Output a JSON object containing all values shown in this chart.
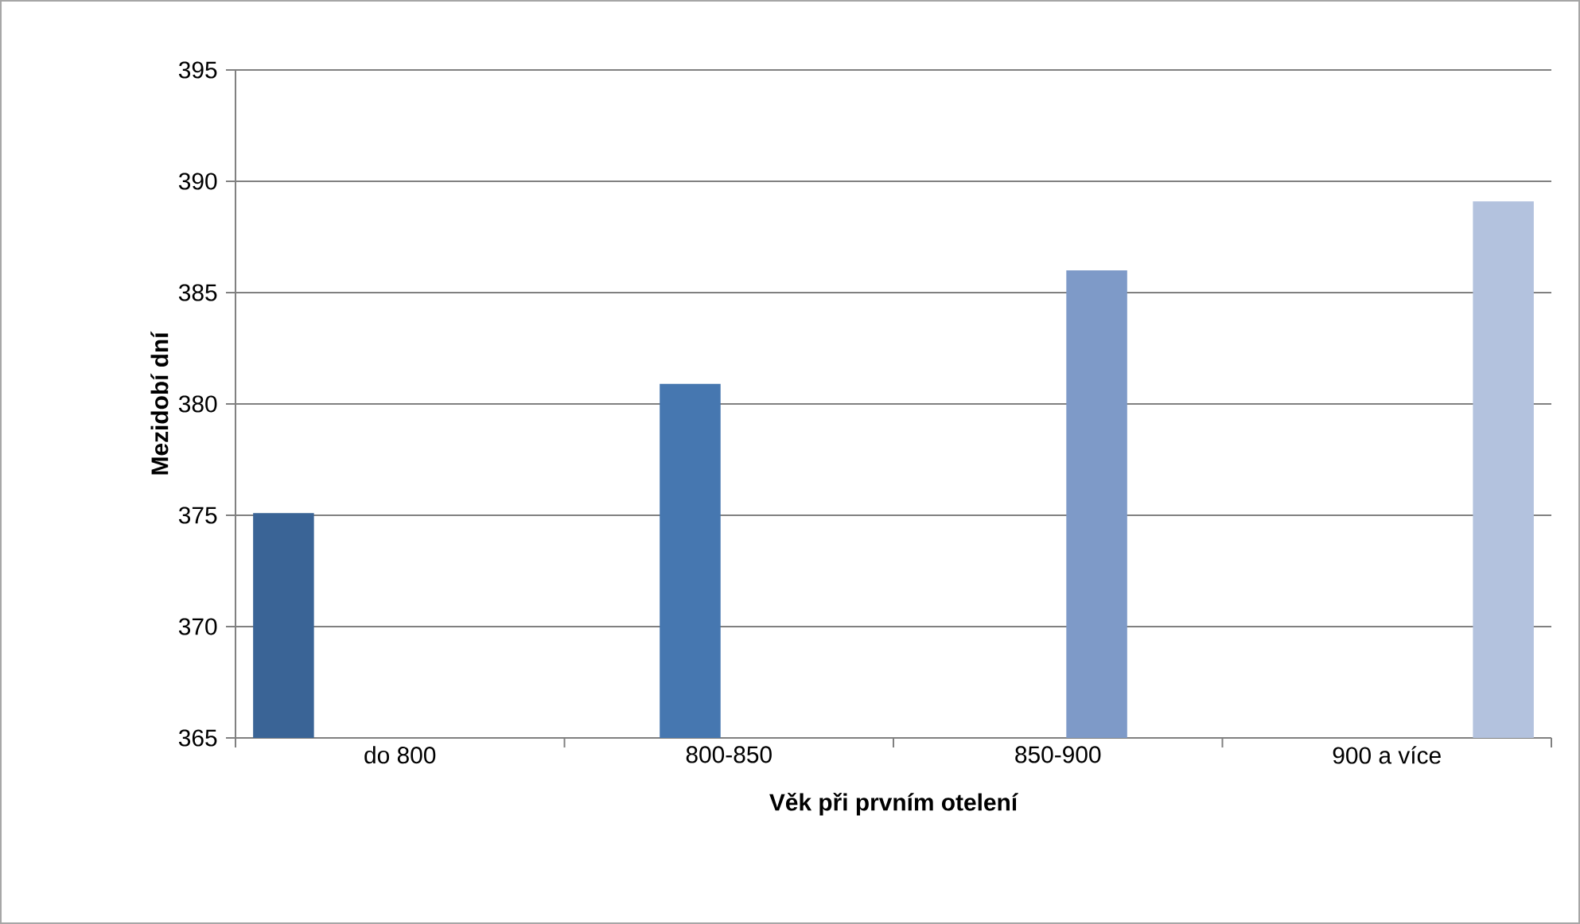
{
  "chart_data": {
    "type": "bar",
    "xlabel": "Věk při prvním otelení",
    "ylabel": "Mezidobí dní",
    "categories": [
      "do 800",
      "800-850",
      "850-900",
      "900 a více"
    ],
    "series": [
      {
        "color": "#3a6496",
        "values": [
          375.1,
          null,
          null,
          null
        ]
      },
      {
        "color": "#4677b0",
        "values": [
          null,
          380.9,
          null,
          null
        ]
      },
      {
        "color": "#7e9ac8",
        "values": [
          null,
          null,
          386.0,
          null
        ]
      },
      {
        "color": "#b3c2de",
        "values": [
          null,
          null,
          null,
          389.1
        ]
      }
    ],
    "ylim": [
      365,
      395
    ],
    "yticks": [
      365,
      370,
      375,
      380,
      385,
      390,
      395
    ],
    "grid": "y"
  }
}
